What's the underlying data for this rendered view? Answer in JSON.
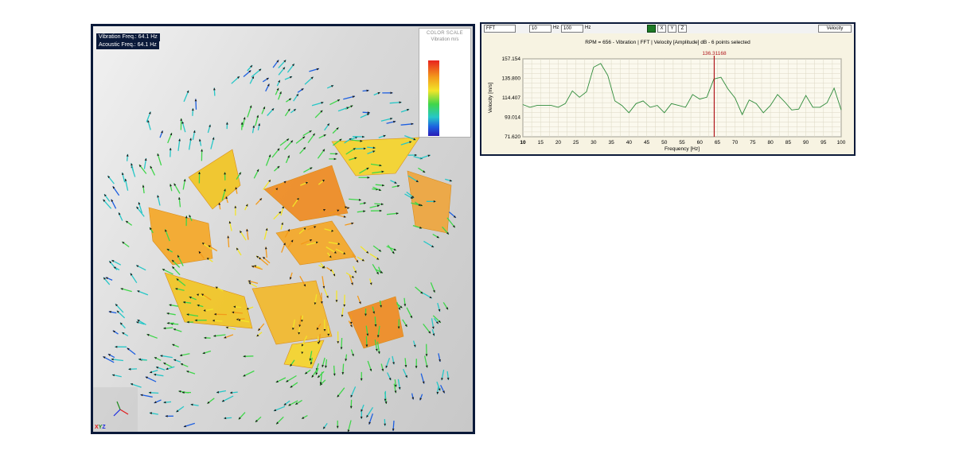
{
  "viewer": {
    "vibration_freq": "Vibration Freq.: 64.1 Hz",
    "acoustic_freq": "Acoustic Freq.: 64.1 Hz",
    "color_scale": {
      "title": "COLOR SCALE",
      "unit": "Vibration m/s",
      "colors": [
        "#e8231f",
        "#f39a1b",
        "#f2e529",
        "#3fd64a",
        "#27c7c7",
        "#1d5fe0",
        "#2a1bb6"
      ]
    },
    "axes": {
      "x": "X",
      "y": "Y",
      "z": "Z"
    }
  },
  "fft_toolbar": {
    "mode": "FFT",
    "freq_min": "10",
    "freq_min_unit": "Hz",
    "freq_max": "100",
    "freq_max_unit": "Hz",
    "dir_buttons": [
      "",
      "X",
      "Y",
      "Z"
    ],
    "quantity": "Velocity"
  },
  "chart_data": {
    "type": "line",
    "title": "RPM = 656 - Vibration | FFT | Velocity [Amplitude] dB - 6 points selected",
    "xlabel": "Frequency [Hz]",
    "ylabel": "Velocity [m/s]",
    "xlim": [
      10,
      100
    ],
    "ylim": [
      71.62,
      157.154
    ],
    "x_ticks": [
      10,
      15,
      20,
      25,
      30,
      35,
      40,
      45,
      50,
      55,
      60,
      65,
      70,
      75,
      80,
      85,
      90,
      95,
      100
    ],
    "y_ticks": [
      71.62,
      93.014,
      114.407,
      135.8,
      157.154
    ],
    "y_tick_labels": [
      "71.620",
      "93.014",
      "114.407",
      "135.800",
      "157.154"
    ],
    "grid": true,
    "cursor": {
      "x": 64.1,
      "label": "136.31168"
    },
    "series": [
      {
        "color": "#2e8b3a",
        "x": [
          10,
          12,
          14,
          16,
          18,
          20,
          22,
          24,
          26,
          28,
          30,
          32,
          34,
          36,
          38,
          40,
          42,
          44,
          46,
          48,
          50,
          52,
          54,
          56,
          58,
          60,
          62,
          64,
          66,
          68,
          70,
          72,
          74,
          76,
          78,
          80,
          82,
          84,
          86,
          88,
          90,
          92,
          94,
          96,
          98,
          100
        ],
        "y": [
          107,
          104,
          106,
          106,
          106,
          104,
          108,
          122,
          115,
          121,
          148,
          152,
          139,
          111,
          106,
          98,
          108,
          111,
          104,
          106,
          98,
          108,
          106,
          104,
          118,
          113,
          115,
          135,
          137,
          124,
          114,
          96,
          112,
          108,
          98,
          106,
          118,
          110,
          101,
          102,
          117,
          104,
          104,
          109,
          125,
          101
        ]
      }
    ]
  }
}
